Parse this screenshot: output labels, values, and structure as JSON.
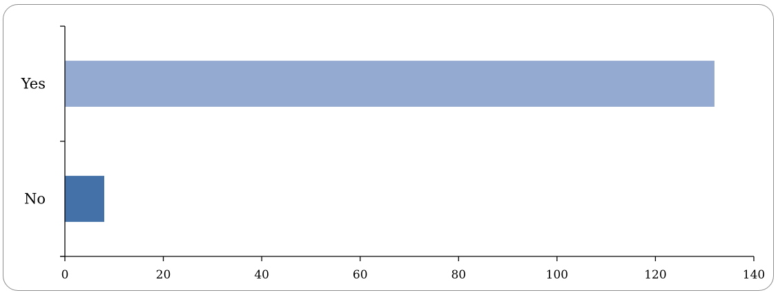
{
  "chart_data": {
    "type": "bar",
    "orientation": "horizontal",
    "title": "",
    "xlabel": "",
    "ylabel": "",
    "categories": [
      "No",
      "Yes"
    ],
    "values": [
      8,
      132
    ],
    "colors": [
      "#4472a8",
      "#95aad1"
    ],
    "xlim": [
      0,
      140
    ],
    "xticks": [
      0,
      20,
      40,
      60,
      80,
      100,
      120,
      140
    ],
    "grid": false,
    "legend": "none"
  }
}
